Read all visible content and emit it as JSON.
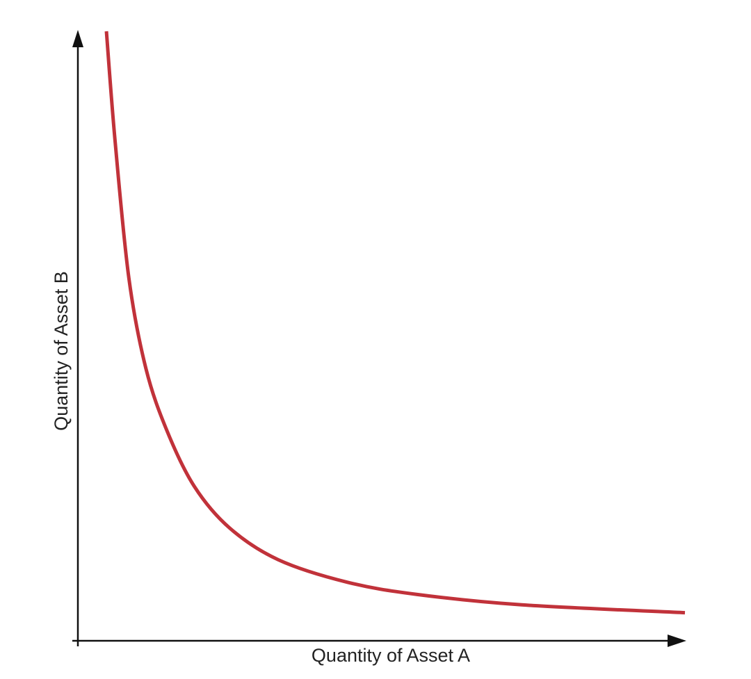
{
  "chart_data": {
    "type": "line",
    "x_label": "Quantity of Asset A",
    "y_label": "Quantity of Asset B",
    "xlim": [
      0,
      100
    ],
    "ylim": [
      0,
      100
    ],
    "series": [
      {
        "color": "#c1323a",
        "x": [
          4.7,
          6.1,
          8.4,
          11.2,
          14.7,
          19.2,
          25.0,
          33.0,
          44.4,
          55.9,
          73.1,
          100
        ],
        "values": [
          100,
          82.3,
          59.5,
          44.7,
          34.4,
          25.3,
          18.5,
          13.3,
          9.6,
          7.6,
          5.9,
          4.6
        ]
      }
    ]
  }
}
